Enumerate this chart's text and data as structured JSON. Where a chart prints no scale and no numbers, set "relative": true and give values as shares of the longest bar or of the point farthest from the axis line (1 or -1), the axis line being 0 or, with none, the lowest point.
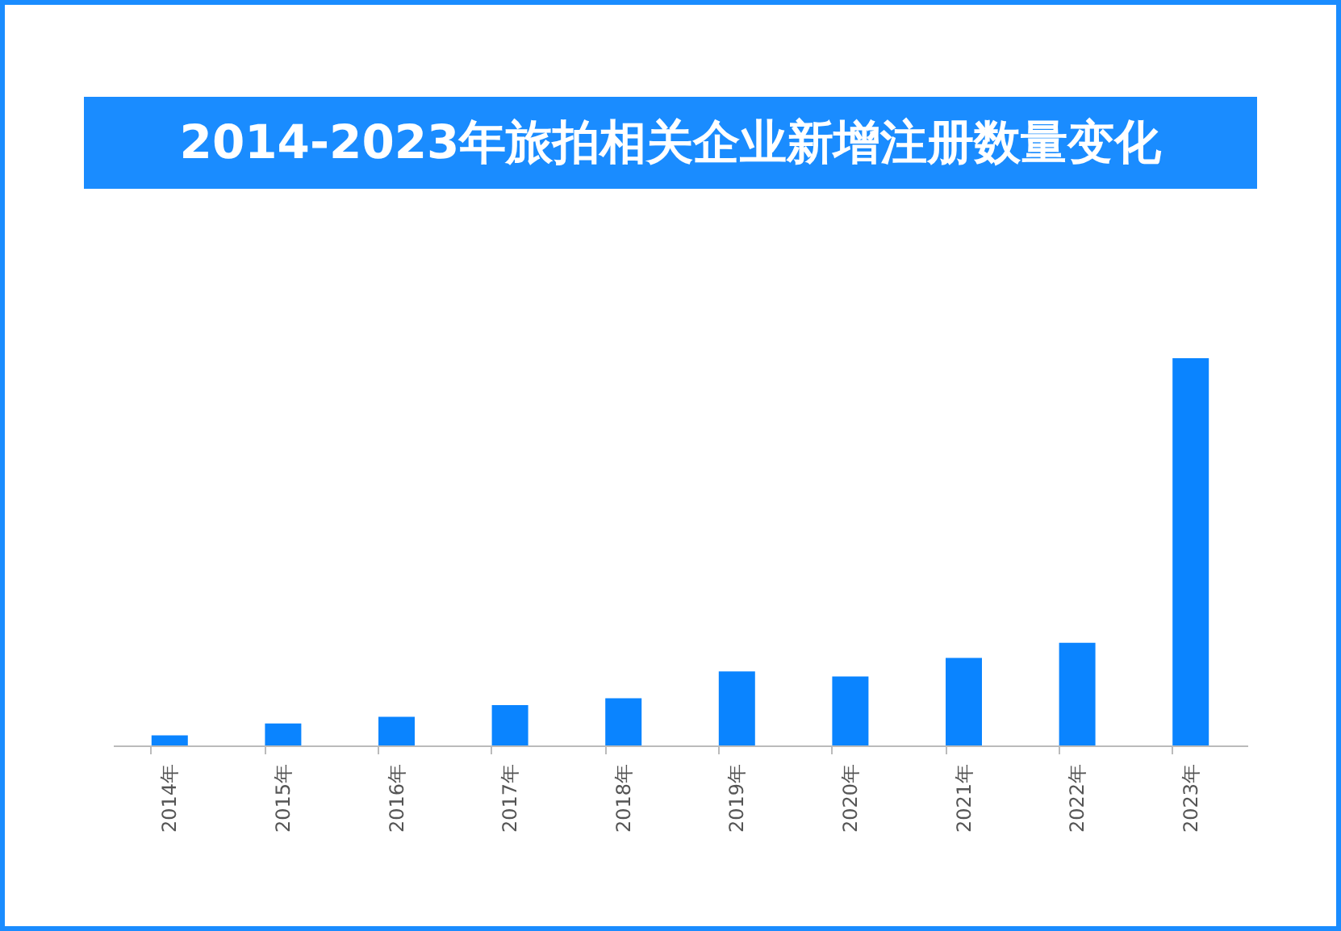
{
  "chart_data": {
    "type": "bar",
    "title": "2014-2023年旅拍相关企业新增注册数量变化",
    "relative": true,
    "categories": [
      "2014年",
      "2015年",
      "2016年",
      "2017年",
      "2018年",
      "2019年",
      "2020年",
      "2021年",
      "2022年",
      "2023年"
    ],
    "values": [
      0.026,
      0.057,
      0.074,
      0.104,
      0.122,
      0.191,
      0.178,
      0.226,
      0.265,
      1
    ],
    "color": "#0a84ff"
  }
}
